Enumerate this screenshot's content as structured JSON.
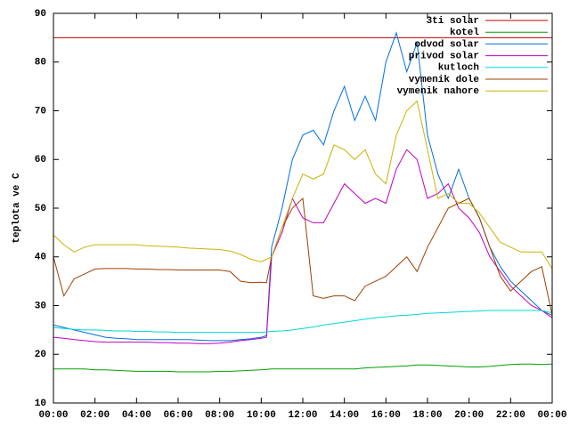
{
  "chart_data": {
    "type": "line",
    "ylabel": "teplota ve C",
    "x": [
      0,
      0.5,
      1,
      1.5,
      2,
      2.5,
      3,
      3.5,
      4,
      4.5,
      5,
      5.5,
      6,
      6.5,
      7,
      7.5,
      8,
      8.5,
      9,
      9.5,
      10,
      10.25,
      10.5,
      11,
      11.5,
      12,
      12.5,
      13,
      13.5,
      14,
      14.5,
      15,
      15.5,
      16,
      16.5,
      17,
      17.5,
      18,
      18.5,
      19,
      19.5,
      20,
      20.5,
      21,
      21.5,
      22,
      22.5,
      23,
      23.5,
      24
    ],
    "xlim": [
      0,
      24
    ],
    "xticks": [
      {
        "value": 0,
        "label": "00:00"
      },
      {
        "value": 2,
        "label": "02:00"
      },
      {
        "value": 4,
        "label": "04:00"
      },
      {
        "value": 6,
        "label": "06:00"
      },
      {
        "value": 8,
        "label": "08:00"
      },
      {
        "value": 10,
        "label": "10:00"
      },
      {
        "value": 12,
        "label": "12:00"
      },
      {
        "value": 14,
        "label": "14:00"
      },
      {
        "value": 16,
        "label": "16:00"
      },
      {
        "value": 18,
        "label": "18:00"
      },
      {
        "value": 20,
        "label": "20:00"
      },
      {
        "value": 22,
        "label": "22:00"
      },
      {
        "value": 24,
        "label": "00:00"
      }
    ],
    "ylim": [
      10,
      90
    ],
    "yticks": [
      10,
      20,
      30,
      40,
      50,
      60,
      70,
      80,
      90
    ],
    "legend": "top-right",
    "series": [
      {
        "name": "3ti solar",
        "color": "#c00000",
        "values": [
          85,
          85,
          85,
          85,
          85,
          85,
          85,
          85,
          85,
          85,
          85,
          85,
          85,
          85,
          85,
          85,
          85,
          85,
          85,
          85,
          85,
          85,
          85,
          85,
          85,
          85,
          85,
          85,
          85,
          85,
          85,
          85,
          85,
          85,
          85,
          85,
          85,
          85,
          85,
          85,
          85,
          85,
          85,
          85,
          85,
          85,
          85,
          85,
          85,
          85
        ]
      },
      {
        "name": "kotel",
        "color": "#00a000",
        "values": [
          17,
          17,
          17,
          17,
          16.8,
          16.8,
          16.7,
          16.6,
          16.5,
          16.5,
          16.5,
          16.5,
          16.4,
          16.4,
          16.4,
          16.4,
          16.5,
          16.5,
          16.6,
          16.7,
          16.8,
          16.9,
          17,
          17,
          17,
          17,
          17,
          17,
          17,
          17,
          17,
          17.2,
          17.3,
          17.4,
          17.5,
          17.6,
          17.8,
          17.8,
          17.7,
          17.6,
          17.5,
          17.4,
          17.4,
          17.5,
          17.7,
          17.9,
          18,
          18,
          17.9,
          18
        ]
      },
      {
        "name": "odvod solar",
        "color": "#0070e0",
        "values": [
          26,
          25.5,
          25,
          24.5,
          24,
          23.5,
          23.3,
          23.2,
          23,
          23,
          23,
          23,
          23,
          23,
          22.9,
          22.8,
          22.8,
          22.8,
          23,
          23.2,
          23.5,
          23.8,
          42,
          50,
          60,
          65,
          66,
          63,
          70,
          75,
          68,
          73,
          68,
          80,
          86,
          78,
          84,
          65,
          57,
          52,
          58,
          52,
          48,
          42,
          38,
          35,
          33,
          31,
          29,
          28
        ]
      },
      {
        "name": "privod solar",
        "color": "#c000c0",
        "values": [
          23.5,
          23.3,
          23,
          22.8,
          22.6,
          22.5,
          22.5,
          22.5,
          22.5,
          22.5,
          22.4,
          22.4,
          22.3,
          22.3,
          22.2,
          22.2,
          22.3,
          22.5,
          22.8,
          23,
          23.3,
          23.5,
          40,
          45,
          52,
          48,
          47,
          47,
          51,
          55,
          53,
          51,
          52,
          51,
          58,
          62,
          60,
          52,
          53,
          55,
          50,
          48,
          45,
          40,
          37,
          34,
          32,
          30,
          29,
          27.5
        ]
      },
      {
        "name": "kutloch",
        "color": "#00d8d8",
        "values": [
          25.5,
          25.3,
          25.1,
          25,
          25,
          24.9,
          24.8,
          24.8,
          24.7,
          24.7,
          24.6,
          24.6,
          24.5,
          24.5,
          24.5,
          24.5,
          24.5,
          24.5,
          24.5,
          24.5,
          24.5,
          24.6,
          24.7,
          24.8,
          25,
          25.3,
          25.6,
          26,
          26.3,
          26.6,
          26.9,
          27.2,
          27.5,
          27.7,
          27.9,
          28,
          28.2,
          28.4,
          28.5,
          28.6,
          28.7,
          28.8,
          28.9,
          29,
          29,
          29,
          29,
          29,
          29,
          28.5
        ]
      },
      {
        "name": "vymenik dole",
        "color": "#a04000",
        "values": [
          40,
          32,
          35.5,
          36.5,
          37.5,
          37.6,
          37.6,
          37.6,
          37.5,
          37.5,
          37.4,
          37.4,
          37.3,
          37.3,
          37.3,
          37.3,
          37.3,
          37,
          35,
          34.7,
          34.8,
          34.7,
          40,
          46,
          50,
          52,
          32,
          31.5,
          32,
          32,
          31,
          34,
          35,
          36,
          38,
          40,
          37,
          42,
          46,
          50,
          51,
          52,
          48,
          42,
          36,
          33,
          35,
          37,
          38,
          28
        ]
      },
      {
        "name": "vymenik nahore",
        "color": "#c8b400",
        "values": [
          44.5,
          42.5,
          41,
          42,
          42.5,
          42.5,
          42.5,
          42.5,
          42.5,
          42.3,
          42.2,
          42.1,
          42,
          41.8,
          41.7,
          41.6,
          41.5,
          41.2,
          40.5,
          39.5,
          39,
          39.5,
          40,
          46,
          52,
          57,
          56,
          57,
          63,
          62,
          60,
          62,
          57,
          55,
          65,
          70,
          72,
          62,
          52,
          53,
          51,
          51,
          49,
          46,
          43,
          42,
          41,
          41,
          41,
          37.5
        ]
      }
    ]
  }
}
